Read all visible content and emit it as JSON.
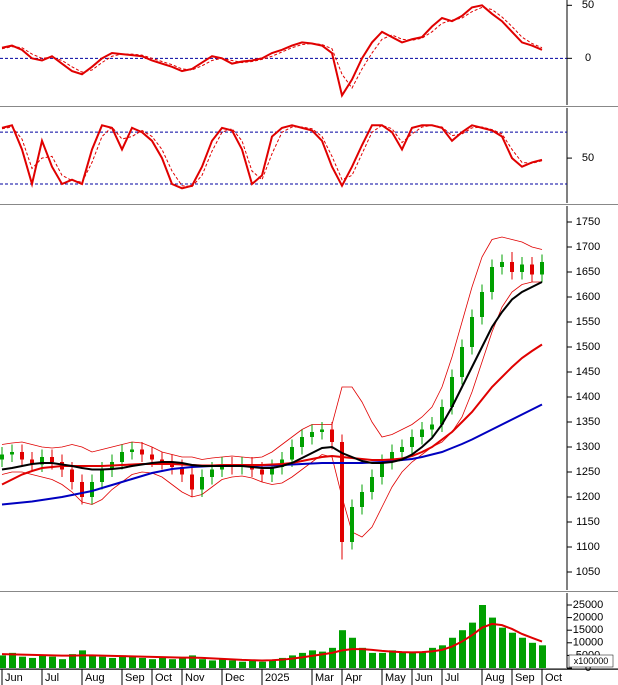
{
  "chart_data": [
    {
      "type": "line",
      "ylim": [
        -44,
        55
      ],
      "yticks": [
        50,
        0
      ],
      "hlines": [
        0
      ],
      "series": [
        {
          "color": "#e00000",
          "values": [
            10,
            12,
            8,
            0,
            -2,
            2,
            -5,
            -12,
            -15,
            -8,
            0,
            5,
            4,
            3,
            2,
            -2,
            -5,
            -8,
            -12,
            -10,
            -4,
            2,
            0,
            -5,
            -3,
            -2,
            0,
            5,
            8,
            12,
            15,
            14,
            12,
            5,
            -35,
            -20,
            0,
            15,
            25,
            20,
            15,
            18,
            20,
            30,
            38,
            35,
            40,
            48,
            50,
            42,
            35,
            25,
            15,
            12,
            8
          ]
        },
        {
          "color": "#e00000",
          "dashed": true,
          "values": [
            9,
            11,
            10,
            4,
            0,
            1,
            -2,
            -8,
            -13,
            -11,
            -4,
            2,
            4,
            4,
            3,
            0,
            -3,
            -6,
            -10,
            -11,
            -7,
            -2,
            0,
            -2,
            -4,
            -3,
            -1,
            2,
            6,
            10,
            13,
            14,
            13,
            9,
            -15,
            -28,
            -10,
            5,
            18,
            22,
            18,
            17,
            19,
            25,
            33,
            36,
            38,
            44,
            48,
            46,
            39,
            30,
            20,
            14,
            10
          ]
        }
      ]
    },
    {
      "type": "line",
      "ylim": [
        -2,
        108
      ],
      "yticks": [
        50
      ],
      "hlines": [
        80,
        20
      ],
      "series": [
        {
          "color": "#e00000",
          "values": [
            85,
            88,
            60,
            20,
            70,
            40,
            20,
            25,
            20,
            60,
            88,
            85,
            60,
            85,
            80,
            70,
            50,
            20,
            15,
            18,
            40,
            70,
            85,
            82,
            60,
            20,
            30,
            75,
            85,
            88,
            85,
            82,
            70,
            40,
            18,
            40,
            65,
            88,
            88,
            80,
            60,
            85,
            88,
            88,
            85,
            70,
            80,
            88,
            85,
            82,
            75,
            50,
            40,
            45,
            48
          ]
        },
        {
          "color": "#e00000",
          "dashed": true,
          "values": [
            84,
            86,
            72,
            38,
            50,
            52,
            30,
            24,
            22,
            45,
            75,
            86,
            72,
            75,
            82,
            75,
            60,
            35,
            18,
            17,
            30,
            58,
            80,
            84,
            70,
            35,
            25,
            55,
            80,
            86,
            86,
            84,
            75,
            52,
            25,
            30,
            55,
            80,
            88,
            84,
            68,
            78,
            86,
            88,
            86,
            76,
            78,
            85,
            86,
            83,
            78,
            60,
            45,
            44,
            47
          ]
        }
      ]
    },
    {
      "type": "candlestick",
      "ylim": [
        1014,
        1782
      ],
      "yticks": [
        1050,
        1100,
        1150,
        1200,
        1250,
        1300,
        1350,
        1400,
        1450,
        1500,
        1550,
        1600,
        1650,
        1700,
        1750
      ],
      "up_color": "#00a000",
      "down_color": "#e00000",
      "open": [
        1275,
        1285,
        1290,
        1275,
        1265,
        1280,
        1270,
        1255,
        1230,
        1200,
        1230,
        1255,
        1270,
        1290,
        1295,
        1285,
        1275,
        1270,
        1260,
        1245,
        1215,
        1240,
        1255,
        1265,
        1260,
        1265,
        1255,
        1245,
        1260,
        1275,
        1300,
        1320,
        1330,
        1335,
        1310,
        1110,
        1180,
        1210,
        1240,
        1270,
        1290,
        1300,
        1320,
        1335,
        1345,
        1380,
        1440,
        1500,
        1560,
        1610,
        1660,
        1670,
        1650,
        1665,
        1645
      ],
      "high": [
        1300,
        1305,
        1305,
        1290,
        1295,
        1295,
        1285,
        1270,
        1245,
        1245,
        1270,
        1285,
        1305,
        1310,
        1310,
        1300,
        1290,
        1285,
        1275,
        1260,
        1255,
        1270,
        1280,
        1280,
        1280,
        1280,
        1270,
        1275,
        1290,
        1315,
        1335,
        1345,
        1350,
        1350,
        1325,
        1195,
        1225,
        1255,
        1285,
        1305,
        1315,
        1335,
        1350,
        1360,
        1395,
        1455,
        1515,
        1575,
        1625,
        1675,
        1685,
        1690,
        1680,
        1680,
        1685
      ],
      "low": [
        1260,
        1270,
        1260,
        1250,
        1250,
        1255,
        1240,
        1215,
        1185,
        1185,
        1215,
        1240,
        1255,
        1275,
        1270,
        1260,
        1255,
        1245,
        1230,
        1200,
        1200,
        1225,
        1240,
        1245,
        1245,
        1240,
        1230,
        1230,
        1245,
        1260,
        1285,
        1305,
        1315,
        1295,
        1075,
        1095,
        1165,
        1195,
        1225,
        1255,
        1275,
        1285,
        1305,
        1320,
        1330,
        1365,
        1425,
        1485,
        1545,
        1595,
        1645,
        1635,
        1635,
        1630,
        1630
      ],
      "close": [
        1285,
        1290,
        1275,
        1265,
        1280,
        1270,
        1255,
        1230,
        1200,
        1230,
        1255,
        1270,
        1290,
        1295,
        1285,
        1275,
        1270,
        1260,
        1245,
        1215,
        1240,
        1255,
        1265,
        1260,
        1265,
        1255,
        1245,
        1260,
        1275,
        1300,
        1320,
        1330,
        1335,
        1310,
        1110,
        1180,
        1210,
        1240,
        1270,
        1290,
        1300,
        1320,
        1335,
        1345,
        1380,
        1440,
        1500,
        1560,
        1610,
        1660,
        1670,
        1650,
        1665,
        1645,
        1670
      ],
      "bands": {
        "color": "#e00000",
        "upper": [
          1305,
          1308,
          1310,
          1305,
          1300,
          1298,
          1300,
          1305,
          1300,
          1290,
          1295,
          1300,
          1305,
          1310,
          1308,
          1300,
          1290,
          1285,
          1280,
          1280,
          1275,
          1278,
          1280,
          1282,
          1280,
          1278,
          1280,
          1290,
          1305,
          1320,
          1335,
          1345,
          1345,
          1345,
          1420,
          1420,
          1390,
          1350,
          1320,
          1325,
          1335,
          1345,
          1360,
          1380,
          1420,
          1480,
          1550,
          1620,
          1680,
          1715,
          1720,
          1715,
          1710,
          1700,
          1695
        ],
        "lower": [
          1245,
          1250,
          1250,
          1245,
          1240,
          1235,
          1225,
          1210,
          1190,
          1185,
          1195,
          1215,
          1230,
          1245,
          1250,
          1248,
          1240,
          1225,
          1210,
          1200,
          1205,
          1220,
          1235,
          1240,
          1242,
          1238,
          1230,
          1225,
          1228,
          1240,
          1255,
          1270,
          1285,
          1280,
          1200,
          1130,
          1120,
          1140,
          1180,
          1220,
          1250,
          1270,
          1285,
          1300,
          1310,
          1330,
          1360,
          1410,
          1470,
          1530,
          1580,
          1610,
          1625,
          1630,
          1630
        ]
      },
      "overlays": [
        {
          "color": "#0000c0",
          "values": [
            1185,
            1187,
            1189,
            1191,
            1194,
            1197,
            1200,
            1204,
            1208,
            1212,
            1218,
            1224,
            1230,
            1236,
            1242,
            1248,
            1252,
            1256,
            1258,
            1260,
            1261,
            1262,
            1262,
            1262,
            1262,
            1262,
            1263,
            1263,
            1264,
            1265,
            1266,
            1267,
            1268,
            1268,
            1268,
            1268,
            1268,
            1269,
            1270,
            1272,
            1274,
            1276,
            1280,
            1285,
            1290,
            1298,
            1306,
            1315,
            1325,
            1335,
            1345,
            1355,
            1365,
            1375,
            1385
          ]
        },
        {
          "color": "#e00000",
          "values": [
            1225,
            1235,
            1245,
            1252,
            1258,
            1260,
            1262,
            1262,
            1262,
            1262,
            1262,
            1263,
            1264,
            1265,
            1266,
            1266,
            1266,
            1266,
            1265,
            1264,
            1263,
            1263,
            1264,
            1264,
            1264,
            1264,
            1264,
            1265,
            1266,
            1268,
            1272,
            1276,
            1280,
            1282,
            1280,
            1278,
            1276,
            1274,
            1274,
            1275,
            1277,
            1282,
            1290,
            1300,
            1315,
            1330,
            1350,
            1370,
            1395,
            1420,
            1440,
            1460,
            1478,
            1492,
            1505
          ]
        },
        {
          "color": "#000000",
          "values": [
            1255,
            1258,
            1262,
            1266,
            1268,
            1268,
            1265,
            1262,
            1258,
            1255,
            1255,
            1256,
            1258,
            1262,
            1265,
            1268,
            1270,
            1270,
            1268,
            1264,
            1262,
            1262,
            1262,
            1262,
            1262,
            1260,
            1258,
            1258,
            1262,
            1268,
            1278,
            1288,
            1298,
            1300,
            1288,
            1280,
            1272,
            1268,
            1268,
            1270,
            1275,
            1285,
            1300,
            1318,
            1345,
            1380,
            1420,
            1460,
            1500,
            1540,
            1570,
            1595,
            1610,
            1620,
            1630
          ]
        }
      ]
    },
    {
      "type": "bar",
      "ylim": [
        0,
        29760
      ],
      "yticks": [
        25000,
        20000,
        15000,
        10000,
        5000,
        0
      ],
      "unit_label": "x100000",
      "color": "#00a000",
      "categories": [
        "Jun",
        null,
        null,
        null,
        "Jul",
        null,
        null,
        null,
        "Aug",
        null,
        null,
        null,
        "Sep",
        null,
        null,
        "Oct",
        null,
        null,
        "Nov",
        null,
        null,
        null,
        "Dec",
        null,
        null,
        null,
        "2025",
        null,
        null,
        null,
        null,
        "Mar",
        null,
        null,
        "Apr",
        null,
        null,
        null,
        "May",
        null,
        null,
        "Jun",
        null,
        null,
        "Jul",
        null,
        null,
        null,
        "Aug",
        null,
        null,
        "Sep",
        null,
        null,
        "Oct"
      ],
      "values": [
        5000,
        6000,
        4500,
        4000,
        5000,
        4500,
        3500,
        5500,
        7000,
        5000,
        4500,
        4000,
        5000,
        4500,
        4000,
        3500,
        4000,
        3500,
        4000,
        5000,
        3500,
        3000,
        3500,
        3000,
        2500,
        3000,
        2500,
        3000,
        4000,
        5000,
        6000,
        7000,
        6500,
        8000,
        15000,
        12000,
        8000,
        6000,
        6000,
        7000,
        6500,
        6000,
        6500,
        8000,
        9000,
        12000,
        15000,
        18000,
        25000,
        20000,
        16000,
        14000,
        12000,
        10000,
        9000
      ],
      "ma": {
        "color": "#e00000",
        "values": [
          5500,
          5400,
          5300,
          5200,
          5100,
          5000,
          4900,
          4900,
          5000,
          5000,
          4900,
          4800,
          4700,
          4600,
          4500,
          4400,
          4300,
          4200,
          4100,
          4100,
          4000,
          3800,
          3600,
          3400,
          3200,
          3100,
          3000,
          3100,
          3300,
          3700,
          4200,
          4800,
          5400,
          6000,
          7000,
          7500,
          7500,
          7200,
          6800,
          6500,
          6300,
          6200,
          6300,
          6600,
          7200,
          8500,
          10500,
          13000,
          16000,
          17500,
          17000,
          15500,
          13500,
          12000,
          10500
        ]
      }
    }
  ]
}
